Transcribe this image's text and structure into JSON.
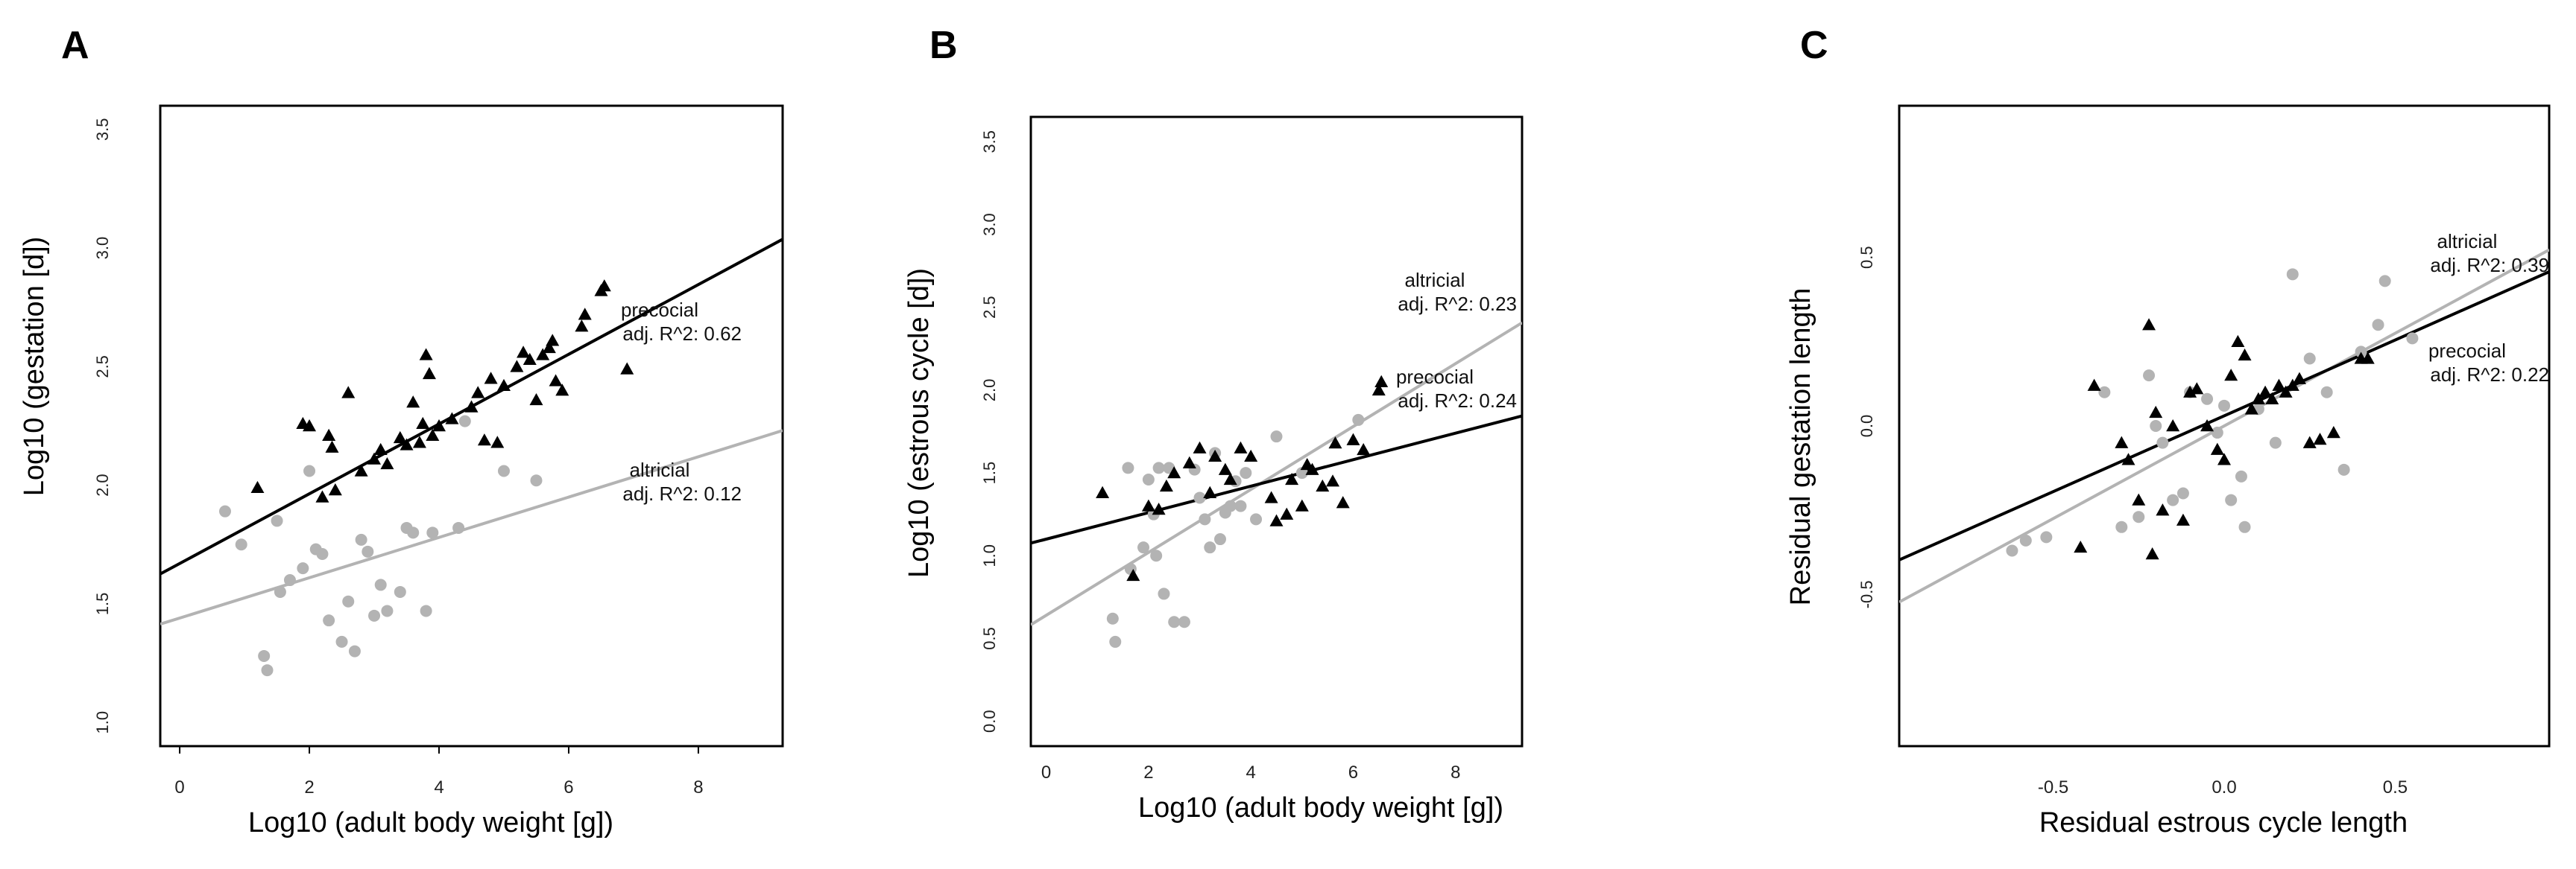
{
  "panels": [
    {
      "letter": "A",
      "chart_data": {
        "type": "scatter",
        "xlabel": "Log10 (adult body weight [g])",
        "ylabel": "Log10 (gestation [d])",
        "xlim": [
          -0.3,
          9.3
        ],
        "ylim": [
          0.9,
          3.6
        ],
        "xticks": [
          0,
          2,
          4,
          6,
          8
        ],
        "xtick_labels": [
          "0",
          "2",
          "4",
          "6",
          "8"
        ],
        "yticks": [
          1.0,
          1.5,
          2.0,
          2.5,
          3.0,
          3.5
        ],
        "ytick_labels": [
          "1.0",
          "1.5",
          "2.0",
          "2.5",
          "3.0",
          "3.5"
        ],
        "series": [
          {
            "name": "precocial",
            "color": "#000000",
            "marker": "triangle",
            "points": [
              [
                1.2,
                1.99
              ],
              [
                1.9,
                2.26
              ],
              [
                2.0,
                2.25
              ],
              [
                2.3,
                2.21
              ],
              [
                2.35,
                2.16
              ],
              [
                2.4,
                1.98
              ],
              [
                2.2,
                1.95
              ],
              [
                2.6,
                2.39
              ],
              [
                2.8,
                2.06
              ],
              [
                3.0,
                2.11
              ],
              [
                3.1,
                2.15
              ],
              [
                3.2,
                2.09
              ],
              [
                3.4,
                2.2
              ],
              [
                3.5,
                2.17
              ],
              [
                3.6,
                2.35
              ],
              [
                3.7,
                2.18
              ],
              [
                3.75,
                2.26
              ],
              [
                3.8,
                2.55
              ],
              [
                3.85,
                2.47
              ],
              [
                3.9,
                2.21
              ],
              [
                4.0,
                2.25
              ],
              [
                4.2,
                2.28
              ],
              [
                4.5,
                2.33
              ],
              [
                4.6,
                2.39
              ],
              [
                4.7,
                2.19
              ],
              [
                4.9,
                2.18
              ],
              [
                4.8,
                2.45
              ],
              [
                5.0,
                2.42
              ],
              [
                5.2,
                2.5
              ],
              [
                5.3,
                2.56
              ],
              [
                5.4,
                2.53
              ],
              [
                5.5,
                2.36
              ],
              [
                5.6,
                2.55
              ],
              [
                5.7,
                2.58
              ],
              [
                5.75,
                2.61
              ],
              [
                5.8,
                2.44
              ],
              [
                5.9,
                2.4
              ],
              [
                6.2,
                2.67
              ],
              [
                6.25,
                2.72
              ],
              [
                6.5,
                2.82
              ],
              [
                6.55,
                2.84
              ],
              [
                6.9,
                2.49
              ]
            ],
            "fit": {
              "intercept": 1.67,
              "slope": 0.147
            },
            "annotation": [
              "precocial",
              "adj. R^2: 0.62"
            ]
          },
          {
            "name": "altricial",
            "color": "#b3b3b3",
            "marker": "circle",
            "points": [
              [
                0.7,
                1.89
              ],
              [
                0.95,
                1.75
              ],
              [
                1.3,
                1.28
              ],
              [
                1.35,
                1.22
              ],
              [
                1.5,
                1.85
              ],
              [
                1.55,
                1.55
              ],
              [
                1.7,
                1.6
              ],
              [
                1.9,
                1.65
              ],
              [
                2.0,
                2.06
              ],
              [
                2.1,
                1.73
              ],
              [
                2.2,
                1.71
              ],
              [
                2.3,
                1.43
              ],
              [
                2.5,
                1.34
              ],
              [
                2.6,
                1.51
              ],
              [
                2.7,
                1.3
              ],
              [
                2.8,
                1.77
              ],
              [
                2.9,
                1.72
              ],
              [
                3.0,
                1.45
              ],
              [
                3.1,
                1.58
              ],
              [
                3.2,
                1.47
              ],
              [
                3.4,
                1.55
              ],
              [
                3.5,
                1.82
              ],
              [
                3.6,
                1.8
              ],
              [
                3.8,
                1.47
              ],
              [
                3.9,
                1.8
              ],
              [
                4.3,
                1.82
              ],
              [
                4.4,
                2.27
              ],
              [
                5.0,
                2.06
              ],
              [
                5.5,
                2.02
              ]
            ],
            "fit": {
              "intercept": 1.44,
              "slope": 0.085
            },
            "annotation": [
              "altricial",
              "adj. R^2: 0.12"
            ]
          }
        ]
      }
    },
    {
      "letter": "B",
      "chart_data": {
        "type": "scatter",
        "xlabel": "Log10 (adult body weight [g])",
        "ylabel": "Log10 (estrous cycle [d])",
        "xlim": [
          -0.3,
          9.3
        ],
        "ylim": [
          -0.15,
          3.65
        ],
        "xticks": [
          0,
          2,
          4,
          6,
          8
        ],
        "xtick_labels": [
          "0",
          "2",
          "4",
          "6",
          "8"
        ],
        "yticks": [
          0.0,
          0.5,
          1.0,
          1.5,
          2.0,
          2.5,
          3.0,
          3.5
        ],
        "ytick_labels": [
          "0.0",
          "0.5",
          "1.0",
          "1.5",
          "2.0",
          "2.5",
          "3.0",
          "3.5"
        ],
        "series": [
          {
            "name": "altricial",
            "color": "#b3b3b3",
            "marker": "circle",
            "points": [
              [
                1.3,
                0.62
              ],
              [
                1.35,
                0.48
              ],
              [
                1.6,
                1.53
              ],
              [
                1.65,
                0.92
              ],
              [
                1.9,
                1.05
              ],
              [
                2.0,
                1.46
              ],
              [
                2.1,
                1.25
              ],
              [
                2.15,
                1.0
              ],
              [
                2.2,
                1.53
              ],
              [
                2.3,
                0.77
              ],
              [
                2.4,
                1.53
              ],
              [
                2.5,
                0.6
              ],
              [
                2.7,
                0.6
              ],
              [
                2.9,
                1.52
              ],
              [
                3.0,
                1.35
              ],
              [
                3.1,
                1.22
              ],
              [
                3.2,
                1.05
              ],
              [
                3.3,
                1.62
              ],
              [
                3.4,
                1.1
              ],
              [
                3.5,
                1.26
              ],
              [
                3.6,
                1.3
              ],
              [
                3.7,
                1.45
              ],
              [
                3.8,
                1.3
              ],
              [
                3.9,
                1.5
              ],
              [
                4.1,
                1.22
              ],
              [
                4.5,
                1.72
              ],
              [
                5.0,
                1.5
              ],
              [
                6.1,
                1.82
              ]
            ],
            "fit": {
              "intercept": 0.64,
              "slope": 0.19
            },
            "annotation": [
              "altricial",
              "adj. R^2: 0.23"
            ]
          },
          {
            "name": "precocial",
            "color": "#000000",
            "marker": "triangle",
            "points": [
              [
                1.1,
                1.38
              ],
              [
                1.7,
                0.88
              ],
              [
                2.0,
                1.3
              ],
              [
                2.2,
                1.28
              ],
              [
                2.35,
                1.42
              ],
              [
                2.5,
                1.5
              ],
              [
                2.8,
                1.56
              ],
              [
                3.0,
                1.65
              ],
              [
                3.2,
                1.38
              ],
              [
                3.3,
                1.6
              ],
              [
                3.5,
                1.52
              ],
              [
                3.6,
                1.46
              ],
              [
                3.8,
                1.65
              ],
              [
                4.0,
                1.6
              ],
              [
                4.4,
                1.35
              ],
              [
                4.5,
                1.21
              ],
              [
                4.7,
                1.25
              ],
              [
                4.8,
                1.46
              ],
              [
                5.0,
                1.3
              ],
              [
                5.1,
                1.55
              ],
              [
                5.2,
                1.52
              ],
              [
                5.4,
                1.42
              ],
              [
                5.6,
                1.45
              ],
              [
                5.65,
                1.68
              ],
              [
                5.8,
                1.32
              ],
              [
                6.0,
                1.7
              ],
              [
                6.2,
                1.64
              ],
              [
                6.5,
                2.0
              ],
              [
                6.55,
                2.05
              ]
            ],
            "fit": {
              "intercept": 1.1,
              "slope": 0.08
            },
            "annotation": [
              "precocial",
              "adj. R^2: 0.24"
            ]
          }
        ]
      }
    },
    {
      "letter": "C",
      "chart_data": {
        "type": "scatter",
        "xlabel": "Residual estrous cycle length",
        "ylabel": "Residual gestation length",
        "xlim": [
          -0.95,
          0.95
        ],
        "ylim": [
          -0.95,
          0.95
        ],
        "xticks": [
          -0.5,
          0.0,
          0.5
        ],
        "xtick_labels": [
          "-0.5",
          "0.0",
          "0.5"
        ],
        "yticks": [
          -0.5,
          0.0,
          0.5
        ],
        "ytick_labels": [
          "-0.5",
          "0.0",
          "0.5"
        ],
        "series": [
          {
            "name": "altricial",
            "color": "#b3b3b3",
            "marker": "circle",
            "points": [
              [
                -0.62,
                -0.37
              ],
              [
                -0.58,
                -0.34
              ],
              [
                -0.52,
                -0.33
              ],
              [
                -0.35,
                0.1
              ],
              [
                -0.3,
                -0.3
              ],
              [
                -0.25,
                -0.27
              ],
              [
                -0.22,
                0.15
              ],
              [
                -0.2,
                0.0
              ],
              [
                -0.18,
                -0.05
              ],
              [
                -0.15,
                -0.22
              ],
              [
                -0.12,
                -0.2
              ],
              [
                -0.1,
                0.1
              ],
              [
                -0.05,
                0.08
              ],
              [
                -0.02,
                -0.02
              ],
              [
                0.0,
                0.06
              ],
              [
                0.02,
                -0.22
              ],
              [
                0.05,
                -0.15
              ],
              [
                0.06,
                -0.3
              ],
              [
                0.1,
                0.05
              ],
              [
                0.15,
                -0.05
              ],
              [
                0.2,
                0.45
              ],
              [
                0.25,
                0.2
              ],
              [
                0.3,
                0.1
              ],
              [
                0.35,
                -0.13
              ],
              [
                0.4,
                0.22
              ],
              [
                0.45,
                0.3
              ],
              [
                0.47,
                0.43
              ],
              [
                0.55,
                0.26
              ]
            ],
            "fit": {
              "intercept": 0.0,
              "slope": 0.55
            },
            "annotation": [
              "altricial",
              "adj. R^2: 0.39"
            ]
          },
          {
            "name": "precocial",
            "color": "#000000",
            "marker": "triangle",
            "points": [
              [
                -0.42,
                -0.36
              ],
              [
                -0.38,
                0.12
              ],
              [
                -0.3,
                -0.05
              ],
              [
                -0.28,
                -0.1
              ],
              [
                -0.25,
                -0.22
              ],
              [
                -0.22,
                0.3
              ],
              [
                -0.21,
                -0.38
              ],
              [
                -0.2,
                0.04
              ],
              [
                -0.18,
                -0.25
              ],
              [
                -0.15,
                0.0
              ],
              [
                -0.12,
                -0.28
              ],
              [
                -0.1,
                0.1
              ],
              [
                -0.08,
                0.11
              ],
              [
                -0.05,
                0.0
              ],
              [
                -0.02,
                -0.07
              ],
              [
                0.0,
                -0.1
              ],
              [
                0.02,
                0.15
              ],
              [
                0.04,
                0.25
              ],
              [
                0.06,
                0.21
              ],
              [
                0.08,
                0.05
              ],
              [
                0.1,
                0.08
              ],
              [
                0.12,
                0.1
              ],
              [
                0.14,
                0.08
              ],
              [
                0.16,
                0.12
              ],
              [
                0.18,
                0.1
              ],
              [
                0.2,
                0.12
              ],
              [
                0.22,
                0.14
              ],
              [
                0.25,
                -0.05
              ],
              [
                0.28,
                -0.04
              ],
              [
                0.32,
                -0.02
              ],
              [
                0.4,
                0.2
              ],
              [
                0.42,
                0.2
              ]
            ],
            "fit": {
              "intercept": 0.03,
              "slope": 0.45
            },
            "annotation": [
              "precocial",
              "adj. R^2: 0.22"
            ]
          }
        ]
      }
    }
  ]
}
